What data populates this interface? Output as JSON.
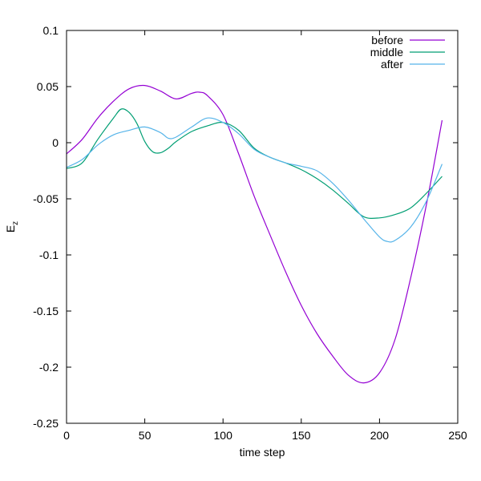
{
  "chart_data": {
    "type": "line",
    "title": "",
    "xlabel": "time step",
    "ylabel": "E",
    "ylabel_sub": "z",
    "xlim": [
      0,
      250
    ],
    "ylim": [
      -0.25,
      0.1
    ],
    "xticks": [
      0,
      50,
      100,
      150,
      200,
      250
    ],
    "xtick_labels": [
      "0",
      "50",
      "100",
      "150",
      "200",
      "250"
    ],
    "yticks": [
      -0.25,
      -0.2,
      -0.15,
      -0.1,
      -0.05,
      0,
      0.05,
      0.1
    ],
    "ytick_labels": [
      "-0.25",
      "-0.2",
      "-0.15",
      "-0.1",
      "-0.05",
      "0",
      "0.05",
      "0.1"
    ],
    "grid": false,
    "legend_position": "top-right",
    "series": [
      {
        "name": "before",
        "color": "#9400d3",
        "x": [
          0,
          10,
          20,
          30,
          40,
          50,
          60,
          70,
          80,
          85,
          90,
          100,
          110,
          120,
          130,
          140,
          150,
          160,
          170,
          180,
          190,
          200,
          210,
          220,
          230,
          240
        ],
        "y": [
          -0.01,
          0.003,
          0.022,
          0.037,
          0.048,
          0.051,
          0.046,
          0.039,
          0.044,
          0.045,
          0.042,
          0.025,
          -0.01,
          -0.048,
          -0.082,
          -0.115,
          -0.145,
          -0.17,
          -0.19,
          -0.207,
          -0.214,
          -0.205,
          -0.175,
          -0.12,
          -0.055,
          0.02
        ]
      },
      {
        "name": "middle",
        "color": "#009e73",
        "x": [
          0,
          10,
          20,
          30,
          35,
          40,
          45,
          50,
          55,
          60,
          65,
          70,
          80,
          90,
          100,
          110,
          120,
          130,
          140,
          150,
          160,
          170,
          180,
          190,
          200,
          210,
          220,
          230,
          240
        ],
        "y": [
          -0.023,
          -0.018,
          0.003,
          0.022,
          0.03,
          0.027,
          0.017,
          0.001,
          -0.008,
          -0.009,
          -0.005,
          0.001,
          0.01,
          0.015,
          0.018,
          0.011,
          -0.005,
          -0.013,
          -0.018,
          -0.024,
          -0.032,
          -0.042,
          -0.054,
          -0.066,
          -0.067,
          -0.064,
          -0.058,
          -0.045,
          -0.03
        ]
      },
      {
        "name": "after",
        "color": "#56b4e9",
        "x": [
          0,
          10,
          20,
          30,
          40,
          50,
          60,
          65,
          70,
          80,
          90,
          100,
          110,
          120,
          130,
          140,
          150,
          160,
          170,
          180,
          190,
          200,
          205,
          210,
          220,
          230,
          240
        ],
        "y": [
          -0.022,
          -0.015,
          -0.002,
          0.007,
          0.011,
          0.014,
          0.009,
          0.004,
          0.005,
          0.014,
          0.022,
          0.018,
          0.008,
          -0.006,
          -0.013,
          -0.018,
          -0.021,
          -0.025,
          -0.036,
          -0.051,
          -0.068,
          -0.084,
          -0.088,
          -0.087,
          -0.075,
          -0.052,
          -0.019
        ]
      }
    ]
  }
}
